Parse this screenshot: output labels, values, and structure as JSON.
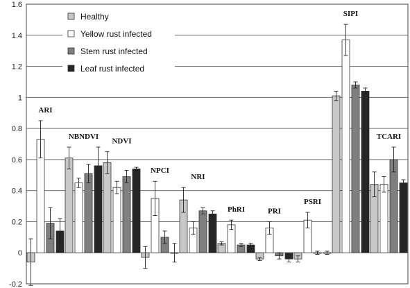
{
  "chart_data": {
    "type": "bar",
    "categories": [
      "ARI",
      "NBNDVI",
      "NDVI",
      "NPCI",
      "NRI",
      "PhRI",
      "PRI",
      "PSRI",
      "SIPI",
      "TCARI"
    ],
    "series": [
      {
        "name": "Healthy",
        "color": "#c8c8c8",
        "values": [
          -0.06,
          0.61,
          0.58,
          -0.03,
          0.34,
          0.06,
          -0.04,
          -0.04,
          1.01,
          0.44
        ],
        "errors": [
          0.15,
          0.07,
          0.07,
          0.07,
          0.08,
          0.01,
          0.01,
          0.02,
          0.03,
          0.08
        ]
      },
      {
        "name": "Yellow rust infected",
        "color": "#ffffff",
        "values": [
          0.73,
          0.45,
          0.42,
          0.35,
          0.16,
          0.18,
          0.16,
          0.21,
          1.37,
          0.44
        ],
        "errors": [
          0.12,
          0.03,
          0.04,
          0.11,
          0.04,
          0.03,
          0.04,
          0.05,
          0.1,
          0.05
        ]
      },
      {
        "name": "Stem rust infected",
        "color": "#7f7f7f",
        "values": [
          0.19,
          0.51,
          0.49,
          0.1,
          0.27,
          0.05,
          -0.02,
          0.0,
          1.08,
          0.6
        ],
        "errors": [
          0.1,
          0.06,
          0.04,
          0.04,
          0.02,
          0.01,
          0.02,
          0.01,
          0.02,
          0.08
        ]
      },
      {
        "name": "Leaf rust infected",
        "color": "#262626",
        "values": [
          0.14,
          0.56,
          0.54,
          0.0,
          0.25,
          0.05,
          -0.04,
          0.0,
          1.04,
          0.45
        ],
        "errors": [
          0.08,
          0.12,
          0.01,
          0.06,
          0.02,
          0.01,
          0.02,
          0.01,
          0.02,
          0.02
        ]
      }
    ],
    "ylim": [
      -0.2,
      1.6
    ],
    "yticks": [
      "-0.2",
      "0",
      "0.2",
      "0.4",
      "0.6",
      "0.8",
      "1",
      "1.2",
      "1.4",
      "1.6"
    ],
    "grid": true,
    "legend_position": "top-left"
  }
}
